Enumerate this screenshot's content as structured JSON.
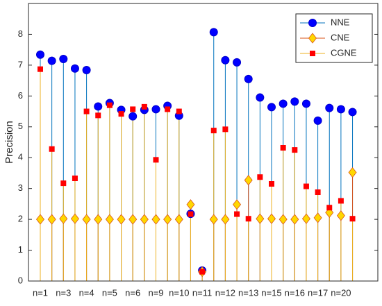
{
  "chart_data": {
    "type": "stem",
    "ylabel": "Precision",
    "categories": [
      "n=1",
      null,
      "n=3",
      null,
      "n=4",
      null,
      "n=5",
      null,
      "n=6",
      null,
      "n=9",
      null,
      "n=10",
      null,
      "n=11",
      null,
      "n=12",
      null,
      "n=13",
      null,
      "n=15",
      null,
      "n=16",
      null,
      "n=17",
      null,
      "n=20",
      null
    ],
    "series": [
      {
        "name": "NNE",
        "color": "#0072bd",
        "marker": "circle",
        "marker_color": "#0000ff",
        "values": [
          7.34,
          7.14,
          7.2,
          6.89,
          6.84,
          5.66,
          5.77,
          5.55,
          5.34,
          5.55,
          5.57,
          5.68,
          5.36,
          2.18,
          0.34,
          8.07,
          7.16,
          7.09,
          6.55,
          5.95,
          5.64,
          5.75,
          5.82,
          5.75,
          5.2,
          5.61,
          5.57,
          5.48
        ]
      },
      {
        "name": "CNE",
        "color": "#d95319",
        "marker": "diamond",
        "marker_color": "#ffd700",
        "values": [
          2.0,
          2.0,
          2.02,
          2.02,
          2.0,
          2.0,
          2.0,
          2.0,
          2.0,
          2.0,
          2.0,
          2.0,
          2.0,
          2.48,
          0.3,
          2.0,
          2.0,
          2.48,
          3.27,
          2.02,
          2.02,
          2.0,
          2.0,
          2.02,
          2.05,
          2.22,
          2.12,
          3.52
        ]
      },
      {
        "name": "CGNE",
        "color": "#edb120",
        "marker": "square",
        "marker_color": "#ff0000",
        "values": [
          6.87,
          4.28,
          3.17,
          3.33,
          5.5,
          5.37,
          5.7,
          5.42,
          5.57,
          5.65,
          3.93,
          5.57,
          5.5,
          2.17,
          0.3,
          4.88,
          4.92,
          2.17,
          2.02,
          3.37,
          3.15,
          4.32,
          4.25,
          3.07,
          2.88,
          2.38,
          2.6,
          2.02
        ]
      }
    ],
    "ylim": [
      0,
      9
    ],
    "yticks": [
      0,
      1,
      2,
      3,
      4,
      5,
      6,
      7,
      8
    ],
    "legend": "top-right"
  }
}
